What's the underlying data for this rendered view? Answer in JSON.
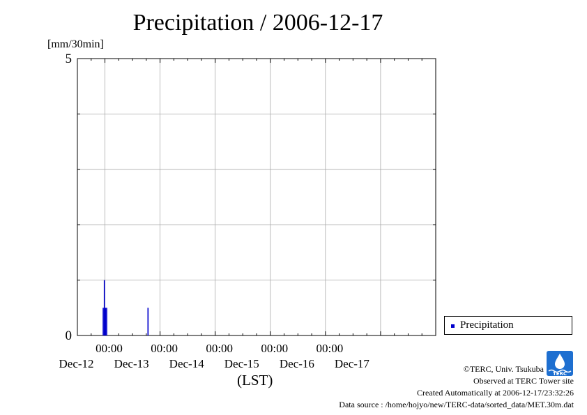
{
  "chart_data": {
    "type": "bar",
    "title": "Precipitation / 2006-12-17",
    "ylabel": "[mm/30min]",
    "xlabel": "(LST)",
    "ylim": [
      0,
      5
    ],
    "y_ticks": [
      "0",
      "5"
    ],
    "x_range_days": [
      "2006-12-11 12:00",
      "2006-12-17 24:00"
    ],
    "x_tick_labels": [
      {
        "time": "00:00",
        "date": "Dec-12"
      },
      {
        "time": "00:00",
        "date": "Dec-13"
      },
      {
        "time": "00:00",
        "date": "Dec-14"
      },
      {
        "time": "00:00",
        "date": "Dec-15"
      },
      {
        "time": "00:00",
        "date": "Dec-16"
      },
      {
        "time": "",
        "date": "Dec-17"
      }
    ],
    "grid": true,
    "legend_position": "bottom-right, outside plot",
    "series": [
      {
        "name": "Precipitation",
        "color": "#0000cc",
        "points": [
          {
            "time": "2006-12-11 23:00",
            "value": 0.5
          },
          {
            "time": "2006-12-11 23:30",
            "value": 1.0
          },
          {
            "time": "2006-12-12 00:00",
            "value": 0.5
          },
          {
            "time": "2006-12-12 00:30",
            "value": 0.5
          },
          {
            "time": "2006-12-12 18:30",
            "value": 0.5
          }
        ]
      }
    ]
  },
  "footer": {
    "copyright": "©TERC, Univ. Tsukuba",
    "site": "Observed at TERC Tower site",
    "created": "Created Automatically at 2006-12-17/23:32:26",
    "source": "Data source : /home/hojyo/new/TERC-data/sorted_data/MET.30m.dat"
  },
  "logo": {
    "text": "TERC",
    "color": "#1e6fd0"
  }
}
